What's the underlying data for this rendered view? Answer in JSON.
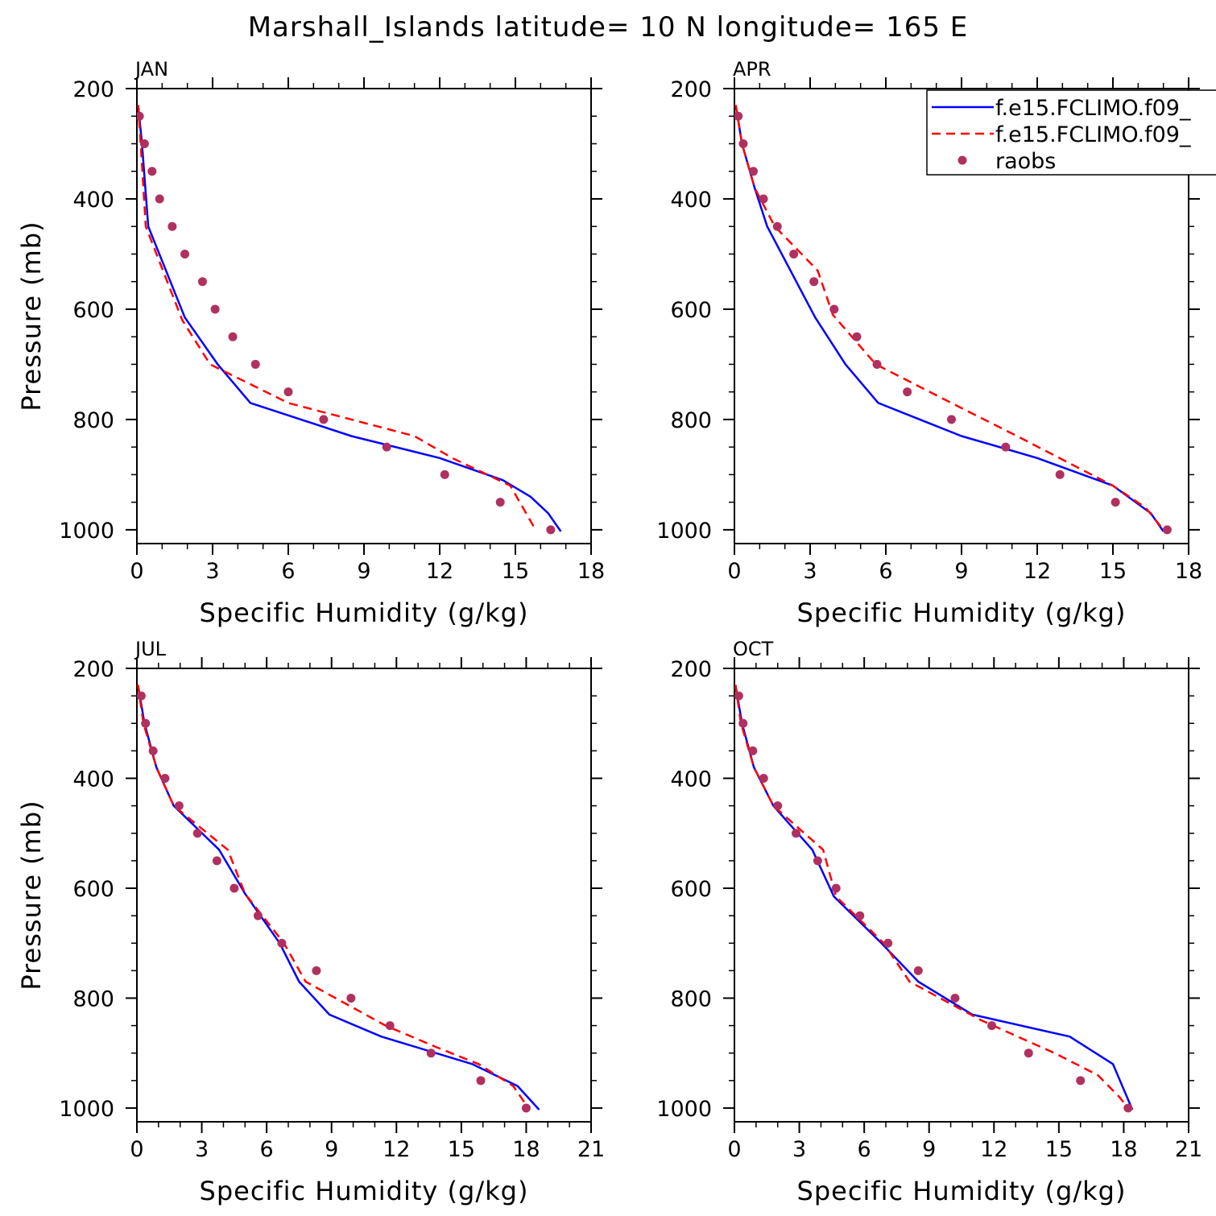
{
  "figure": {
    "title": "Marshall_Islands  latitude= 10 N longitude= 165 E"
  },
  "legend": {
    "placement": "top-right of APR panel",
    "entries": [
      {
        "label": "f.e15.FCLIMO.f09_",
        "color": "#0000ff",
        "style": "solid"
      },
      {
        "label": "f.e15.FCLIMO.f09_",
        "color": "#ff0000",
        "style": "dashed"
      },
      {
        "label": "raobs",
        "color": "#b03060",
        "style": "marker"
      }
    ]
  },
  "chart_data": [
    {
      "type": "line",
      "panel_label": "JAN",
      "xlabel": "Specific Humidity (g/kg)",
      "ylabel": "Pressure (mb)",
      "xlim": [
        0,
        18
      ],
      "ylim": [
        200,
        1025
      ],
      "y_inverted": true,
      "xticks": [
        0,
        3,
        6,
        9,
        12,
        15,
        18
      ],
      "yticks": [
        200,
        400,
        600,
        800,
        1000
      ],
      "series": [
        {
          "color": "#0000ff",
          "style": "solid",
          "x": [
            0.05,
            0.2,
            0.45,
            1.9,
            3.2,
            4.5,
            8.5,
            12.0,
            14.5,
            15.6,
            16.3,
            16.8
          ],
          "y": [
            230,
            300,
            450,
            615,
            700,
            770,
            830,
            870,
            910,
            940,
            970,
            1003
          ]
        },
        {
          "color": "#ff0000",
          "style": "dashed",
          "x": [
            0.05,
            0.15,
            0.35,
            1.8,
            2.9,
            6.0,
            11.0,
            12.5,
            14.8,
            15.3,
            15.8
          ],
          "y": [
            230,
            300,
            450,
            620,
            700,
            770,
            830,
            870,
            920,
            960,
            1000
          ]
        },
        {
          "color": "#b03060",
          "style": "marker",
          "x": [
            0.1,
            0.3,
            0.6,
            0.9,
            1.4,
            1.9,
            2.6,
            3.1,
            3.8,
            4.7,
            6.0,
            7.4,
            9.9,
            12.2,
            14.4,
            16.4
          ],
          "y": [
            250,
            300,
            350,
            400,
            450,
            500,
            550,
            600,
            650,
            700,
            750,
            800,
            850,
            900,
            950,
            1000
          ]
        }
      ]
    },
    {
      "type": "line",
      "panel_label": "APR",
      "xlabel": "Specific Humidity (g/kg)",
      "ylabel": "",
      "xlim": [
        0,
        18
      ],
      "ylim": [
        200,
        1025
      ],
      "y_inverted": true,
      "xticks": [
        0,
        3,
        6,
        9,
        12,
        15,
        18
      ],
      "yticks": [
        200,
        400,
        600,
        800,
        1000
      ],
      "series": [
        {
          "color": "#0000ff",
          "style": "solid",
          "x": [
            0.05,
            0.3,
            0.8,
            1.3,
            3.2,
            4.4,
            5.7,
            9.0,
            12.0,
            15.0,
            16.5,
            17.0
          ],
          "y": [
            230,
            300,
            380,
            450,
            615,
            700,
            770,
            830,
            870,
            920,
            970,
            1003
          ]
        },
        {
          "color": "#ff0000",
          "style": "dashed",
          "x": [
            0.05,
            0.3,
            0.8,
            1.6,
            3.3,
            3.9,
            5.6,
            8.6,
            11.2,
            15.0,
            16.3,
            17.0
          ],
          "y": [
            230,
            300,
            380,
            450,
            530,
            610,
            700,
            770,
            830,
            920,
            960,
            1000
          ]
        },
        {
          "color": "#b03060",
          "style": "marker",
          "x": [
            0.15,
            0.35,
            0.75,
            1.15,
            1.7,
            2.35,
            3.15,
            3.95,
            4.85,
            5.65,
            6.85,
            8.6,
            10.75,
            12.9,
            15.1,
            17.15
          ],
          "y": [
            250,
            300,
            350,
            400,
            450,
            500,
            550,
            600,
            650,
            700,
            750,
            800,
            850,
            900,
            950,
            1000
          ]
        }
      ]
    },
    {
      "type": "line",
      "panel_label": "JUL",
      "xlabel": "Specific Humidity (g/kg)",
      "ylabel": "Pressure (mb)",
      "xlim": [
        0,
        21
      ],
      "ylim": [
        200,
        1025
      ],
      "y_inverted": true,
      "xticks": [
        0,
        3,
        6,
        9,
        12,
        15,
        18,
        21
      ],
      "yticks": [
        200,
        400,
        600,
        800,
        1000
      ],
      "series": [
        {
          "color": "#0000ff",
          "style": "solid",
          "x": [
            0.05,
            0.35,
            0.9,
            1.7,
            3.8,
            5.0,
            6.6,
            7.5,
            8.9,
            11.3,
            15.5,
            17.6,
            18.6
          ],
          "y": [
            230,
            300,
            380,
            450,
            530,
            610,
            700,
            770,
            830,
            870,
            920,
            960,
            1003
          ]
        },
        {
          "color": "#ff0000",
          "style": "dashed",
          "x": [
            0.05,
            0.3,
            0.9,
            1.7,
            4.2,
            5.0,
            6.8,
            7.8,
            11.5,
            13.9,
            15.8,
            17.4,
            18.1
          ],
          "y": [
            230,
            300,
            380,
            450,
            530,
            610,
            700,
            770,
            850,
            890,
            920,
            960,
            1000
          ]
        },
        {
          "color": "#b03060",
          "style": "marker",
          "x": [
            0.2,
            0.4,
            0.75,
            1.3,
            1.95,
            2.8,
            3.7,
            4.5,
            5.6,
            6.7,
            8.3,
            9.9,
            11.7,
            13.6,
            15.9,
            18.0
          ],
          "y": [
            250,
            300,
            350,
            400,
            450,
            500,
            550,
            600,
            650,
            700,
            750,
            800,
            850,
            900,
            950,
            1000
          ]
        }
      ]
    },
    {
      "type": "line",
      "panel_label": "OCT",
      "xlabel": "Specific Humidity (g/kg)",
      "ylabel": "",
      "xlim": [
        0,
        21
      ],
      "ylim": [
        200,
        1025
      ],
      "y_inverted": true,
      "xticks": [
        0,
        3,
        6,
        9,
        12,
        15,
        18,
        21
      ],
      "yticks": [
        200,
        400,
        600,
        800,
        1000
      ],
      "series": [
        {
          "color": "#0000ff",
          "style": "solid",
          "x": [
            0.05,
            0.35,
            0.9,
            1.8,
            3.6,
            4.6,
            6.8,
            8.5,
            11.0,
            15.5,
            17.5,
            18.4
          ],
          "y": [
            230,
            300,
            380,
            450,
            530,
            615,
            700,
            770,
            830,
            870,
            920,
            1003
          ]
        },
        {
          "color": "#ff0000",
          "style": "dashed",
          "x": [
            0.05,
            0.3,
            0.9,
            1.8,
            4.1,
            4.7,
            6.9,
            8.1,
            11.4,
            14.8,
            16.8,
            17.8,
            18.2
          ],
          "y": [
            230,
            300,
            380,
            450,
            530,
            615,
            700,
            770,
            840,
            900,
            940,
            980,
            1000
          ]
        },
        {
          "color": "#b03060",
          "style": "marker",
          "x": [
            0.2,
            0.4,
            0.85,
            1.35,
            2.0,
            2.85,
            3.85,
            4.7,
            5.8,
            7.1,
            8.5,
            10.2,
            11.9,
            13.6,
            16.0,
            18.2
          ],
          "y": [
            250,
            300,
            350,
            400,
            450,
            500,
            550,
            600,
            650,
            700,
            750,
            800,
            850,
            900,
            950,
            1000
          ]
        }
      ]
    }
  ]
}
